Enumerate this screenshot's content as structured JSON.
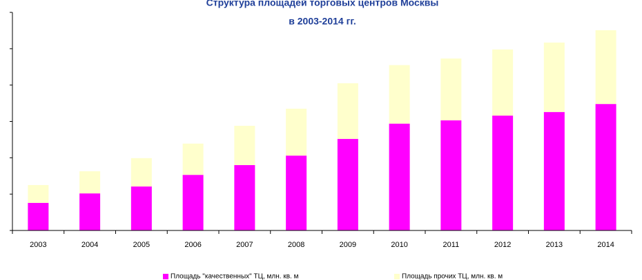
{
  "chart_data": {
    "type": "stacked_bar",
    "title": "Структура площадей торговых центров Москвы",
    "subtitle": "в 2003-2014 гг.",
    "categories": [
      "2003",
      "2004",
      "2005",
      "2006",
      "2007",
      "2008",
      "2009",
      "2010",
      "2011",
      "2012",
      "2013",
      "2014"
    ],
    "series": [
      {
        "name": "Площадь \"качественных\" ТЦ, млн. кв. м",
        "color": "#ff00ff",
        "values": [
          0.76,
          1.02,
          1.21,
          1.53,
          1.8,
          2.06,
          2.52,
          2.94,
          3.03,
          3.16,
          3.26,
          3.48
        ]
      },
      {
        "name": "Площадь прочих ТЦ, млн. кв. м",
        "color": "#ffffcc",
        "values": [
          0.49,
          0.61,
          0.78,
          0.86,
          1.08,
          1.29,
          1.53,
          1.61,
          1.7,
          1.82,
          1.91,
          2.03
        ]
      }
    ],
    "ylim": [
      0,
      6
    ],
    "yticks": [
      0,
      1,
      2,
      3,
      4,
      5,
      6
    ]
  }
}
